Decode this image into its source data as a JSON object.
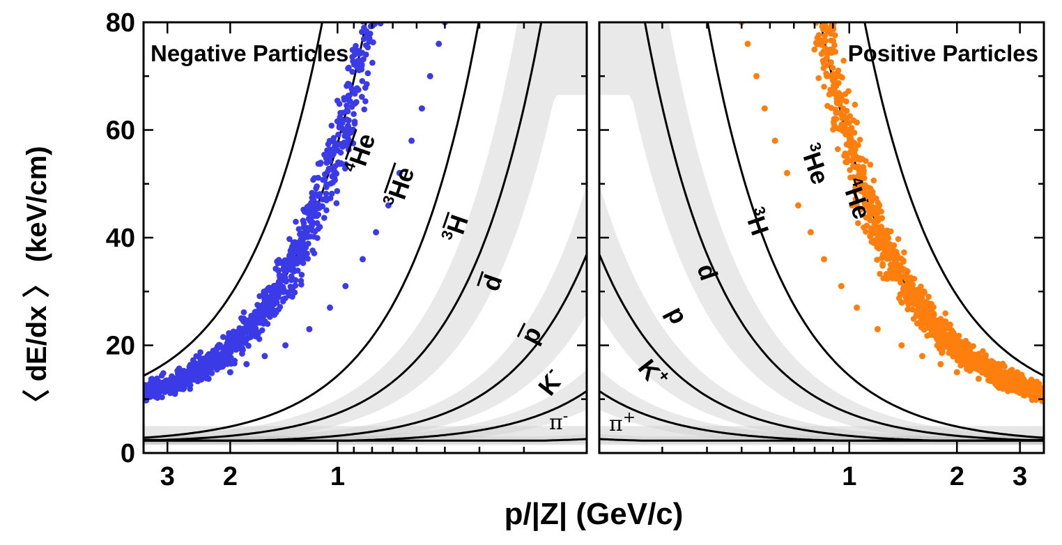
{
  "chart_data": {
    "type": "scatter",
    "xlabel": "p/|Z| (GeV/c)",
    "ylabel": "〈 dE/dx 〉 (keV/cm)",
    "ylim": [
      0,
      80
    ],
    "y_ticks": [
      "0",
      "20",
      "40",
      "60",
      "80"
    ],
    "x_scale": "log",
    "x_ticks": [
      "1",
      "2",
      "3"
    ],
    "xlim": [
      0.2,
      3.5
    ],
    "grid": false,
    "colors": {
      "negative_points": "#3a3ae6",
      "positive_points": "#ff7f0e",
      "background_hist": "#b0b0b0",
      "curves": "#000000"
    },
    "panels": [
      {
        "title": "Negative Particles",
        "side": "left",
        "x_direction": "reversed",
        "curve_labels": [
          "4He-bar",
          "3He-bar",
          "3H-bar",
          "d-bar",
          "p-bar",
          "K-",
          "π-"
        ],
        "label_texts": {
          "He4": "He",
          "He3": "He",
          "H3": "H",
          "d": "d",
          "p": "p",
          "K": "K",
          "pi": "π"
        },
        "label_mass_numbers": {
          "He4": "4",
          "He3": "3",
          "H3": "3"
        },
        "label_charge_signs": {
          "K": "-",
          "pi": "-"
        },
        "highlighted_species": "3He-bar",
        "highlight_points_sample": [
          {
            "x": 3.3,
            "y": 11.5
          },
          {
            "x": 3.0,
            "y": 12.0
          },
          {
            "x": 2.6,
            "y": 12.8
          },
          {
            "x": 2.3,
            "y": 13.8
          },
          {
            "x": 2.0,
            "y": 15.0
          },
          {
            "x": 1.8,
            "y": 16.5
          },
          {
            "x": 1.6,
            "y": 18.0
          },
          {
            "x": 1.4,
            "y": 20.0
          },
          {
            "x": 1.2,
            "y": 23.0
          },
          {
            "x": 1.05,
            "y": 27.0
          },
          {
            "x": 0.95,
            "y": 31.0
          },
          {
            "x": 0.85,
            "y": 36.0
          },
          {
            "x": 0.78,
            "y": 41.0
          },
          {
            "x": 0.72,
            "y": 46.0
          },
          {
            "x": 0.67,
            "y": 52.0
          },
          {
            "x": 0.62,
            "y": 58.0
          },
          {
            "x": 0.58,
            "y": 64.0
          },
          {
            "x": 0.55,
            "y": 70.0
          },
          {
            "x": 0.52,
            "y": 76.0
          },
          {
            "x": 0.5,
            "y": 80.0
          }
        ]
      },
      {
        "title": "Positive Particles",
        "side": "right",
        "x_direction": "normal",
        "curve_labels": [
          "4He",
          "3He",
          "3H",
          "d",
          "p",
          "K+",
          "π+"
        ],
        "label_texts": {
          "He4": "He",
          "He3": "He",
          "H3": "H",
          "d": "d",
          "p": "p",
          "K": "K",
          "pi": "π"
        },
        "label_mass_numbers": {
          "He4": "4",
          "He3": "3",
          "H3": "3"
        },
        "label_charge_signs": {
          "K": "+",
          "pi": "+"
        },
        "highlighted_species": "3He",
        "highlight_points_sample": [
          {
            "x": 3.3,
            "y": 11.5
          },
          {
            "x": 3.0,
            "y": 12.0
          },
          {
            "x": 2.6,
            "y": 12.8
          },
          {
            "x": 2.3,
            "y": 13.8
          },
          {
            "x": 2.0,
            "y": 15.0
          },
          {
            "x": 1.8,
            "y": 16.5
          },
          {
            "x": 1.6,
            "y": 18.0
          },
          {
            "x": 1.4,
            "y": 20.0
          },
          {
            "x": 1.2,
            "y": 23.0
          },
          {
            "x": 1.05,
            "y": 27.0
          },
          {
            "x": 0.95,
            "y": 31.0
          },
          {
            "x": 0.85,
            "y": 36.0
          },
          {
            "x": 0.78,
            "y": 41.0
          },
          {
            "x": 0.72,
            "y": 46.0
          },
          {
            "x": 0.67,
            "y": 52.0
          },
          {
            "x": 0.62,
            "y": 58.0
          },
          {
            "x": 0.58,
            "y": 64.0
          },
          {
            "x": 0.55,
            "y": 70.0
          },
          {
            "x": 0.52,
            "y": 76.0
          },
          {
            "x": 0.5,
            "y": 80.0
          }
        ]
      }
    ]
  }
}
